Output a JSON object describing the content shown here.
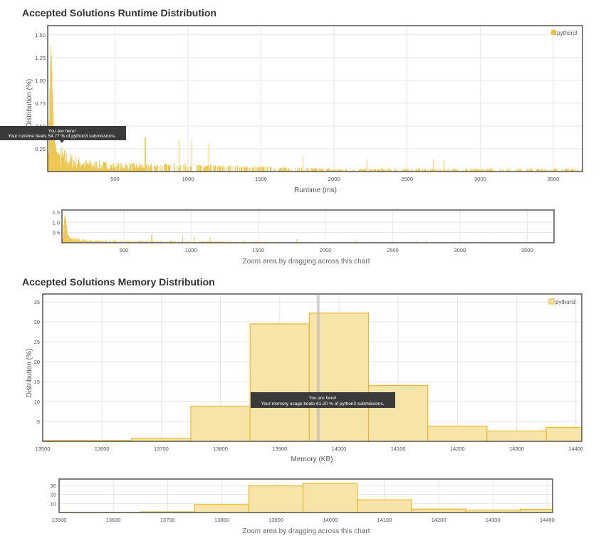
{
  "runtime_section": {
    "title": "Accepted Solutions Runtime Distribution",
    "zoom_hint": "Zoom area by dragging across this chart",
    "tooltip_line1": "You are here!",
    "tooltip_line2": "Your runtime beats 54.77 % of python3 submissions."
  },
  "memory_section": {
    "title": "Accepted Solutions Memory Distribution",
    "zoom_hint": "Zoom area by dragging across this chart",
    "tooltip_line1": "You are here!",
    "tooltip_line2": "Your memory usage beats 61.20 % of python3 submissions."
  },
  "colors": {
    "runtime_bar": "#ecc242",
    "memory_fill": "#f7e4a9",
    "memory_stroke": "#eab92a",
    "grid": "#e5e5e5",
    "frame": "#555555",
    "tooltip_bg": "#3a3a3a"
  },
  "chart_data": [
    {
      "type": "bar",
      "title": "Accepted Solutions Runtime Distribution",
      "xlabel": "Runtime (ms)",
      "ylabel": "Distribution (%)",
      "xlim": [
        40,
        3700
      ],
      "ylim": [
        0,
        1.6
      ],
      "x_ticks": [
        "500",
        "1000",
        "1500",
        "2000",
        "2500",
        "3000",
        "3500"
      ],
      "y_ticks": [
        "0.25",
        "0.50",
        "0.75",
        "1.00",
        "1.25",
        "1.50"
      ],
      "grid": true,
      "legend": "top-right",
      "series": [
        {
          "name": "python3"
        }
      ],
      "bin_width_ms": 4,
      "peaks": [
        {
          "x": 44,
          "y": 0.2
        },
        {
          "x": 48,
          "y": 0.55
        },
        {
          "x": 52,
          "y": 0.9
        },
        {
          "x": 56,
          "y": 1.2
        },
        {
          "x": 60,
          "y": 1.37
        },
        {
          "x": 64,
          "y": 1.28
        },
        {
          "x": 68,
          "y": 1.1
        },
        {
          "x": 72,
          "y": 0.85
        },
        {
          "x": 76,
          "y": 0.65
        },
        {
          "x": 80,
          "y": 0.45
        },
        {
          "x": 84,
          "y": 0.4
        },
        {
          "x": 88,
          "y": 0.32
        },
        {
          "x": 92,
          "y": 0.3
        },
        {
          "x": 96,
          "y": 0.26
        },
        {
          "x": 100,
          "y": 0.22
        },
        {
          "x": 110,
          "y": 0.2
        },
        {
          "x": 120,
          "y": 0.18
        },
        {
          "x": 150,
          "y": 0.15
        },
        {
          "x": 200,
          "y": 0.12
        },
        {
          "x": 300,
          "y": 0.08
        },
        {
          "x": 500,
          "y": 0.06
        },
        {
          "x": 1000,
          "y": 0.05
        },
        {
          "x": 2000,
          "y": 0.02
        },
        {
          "x": 3600,
          "y": 0.02
        }
      ],
      "your_position_ms": 84
    },
    {
      "type": "bar",
      "title": "Accepted Solutions Memory Distribution",
      "xlabel": "Memory (KB)",
      "ylabel": "Distribution (%)",
      "xlim": [
        13500,
        14410
      ],
      "ylim": [
        0,
        37
      ],
      "x_ticks": [
        "13500",
        "13600",
        "13700",
        "13800",
        "13900",
        "14000",
        "14100",
        "14200",
        "14300",
        "14400"
      ],
      "y_ticks": [
        "5",
        "10",
        "15",
        "20",
        "25",
        "30",
        "35"
      ],
      "grid": true,
      "legend": "top-right",
      "series": [
        {
          "name": "python3"
        }
      ],
      "bins": [
        {
          "from": 13500,
          "to": 13650,
          "value": 0.2
        },
        {
          "from": 13650,
          "to": 13750,
          "value": 0.7
        },
        {
          "from": 13750,
          "to": 13850,
          "value": 8.8
        },
        {
          "from": 13850,
          "to": 13950,
          "value": 29.5
        },
        {
          "from": 13950,
          "to": 14050,
          "value": 32.2
        },
        {
          "from": 14050,
          "to": 14150,
          "value": 14.0
        },
        {
          "from": 14150,
          "to": 14250,
          "value": 3.8
        },
        {
          "from": 14250,
          "to": 14350,
          "value": 2.6
        },
        {
          "from": 14350,
          "to": 14410,
          "value": 3.5
        }
      ],
      "your_position_kb": 13965
    }
  ]
}
